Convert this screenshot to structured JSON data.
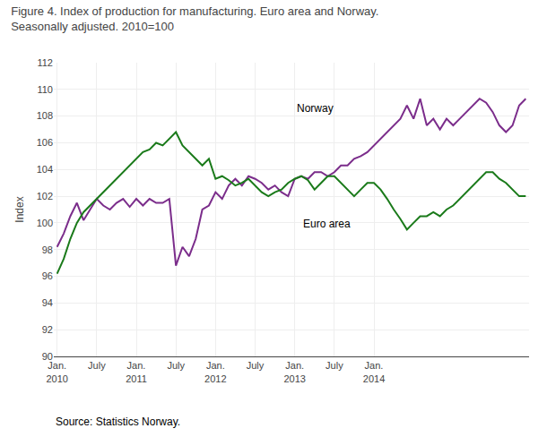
{
  "chart_data": {
    "type": "line",
    "title": "Figure 4. Index of production for manufacturing. Euro area and Norway.",
    "subtitle": "Seasonally adjusted. 2010=100",
    "ylabel": "Index",
    "source": "Source: Statistics Norway.",
    "categories": [
      "Jan.\n2010",
      null,
      null,
      null,
      null,
      null,
      "July",
      null,
      null,
      null,
      null,
      null,
      "Jan.\n2011",
      null,
      null,
      null,
      null,
      null,
      "July",
      null,
      null,
      null,
      null,
      null,
      "Jan.\n2012",
      null,
      null,
      null,
      null,
      null,
      "July",
      null,
      null,
      null,
      null,
      null,
      "Jan.\n2013",
      null,
      null,
      null,
      null,
      null,
      "July",
      null,
      null,
      null,
      null,
      null,
      "Jan.\n2014",
      null,
      null,
      null,
      null,
      null,
      null,
      null,
      null,
      null,
      null,
      null,
      null,
      null,
      null,
      null,
      null,
      null,
      null,
      null,
      null,
      null,
      null,
      null
    ],
    "series": [
      {
        "color": "#7B2D8B",
        "values": [
          98.2,
          99.2,
          100.5,
          101.5,
          100.2,
          101.0,
          101.8,
          101.3,
          101.0,
          101.5,
          101.8,
          101.2,
          101.8,
          101.3,
          101.8,
          101.5,
          101.5,
          101.8,
          96.8,
          98.2,
          97.5,
          98.8,
          101.0,
          101.3,
          102.3,
          101.8,
          102.8,
          103.3,
          102.8,
          103.5,
          103.3,
          103.0,
          102.5,
          102.8,
          102.3,
          102.0,
          103.3,
          103.5,
          103.3,
          103.8,
          103.8,
          103.5,
          103.8,
          104.3,
          104.3,
          104.8,
          105.0,
          105.3,
          105.8,
          106.3,
          106.8,
          107.3,
          107.8,
          108.8,
          107.8,
          109.3,
          107.3,
          107.8,
          107.0,
          107.8,
          107.3,
          107.8,
          108.3,
          108.8,
          109.3,
          109.0,
          108.3,
          107.3,
          106.8,
          107.3,
          108.8,
          109.3
        ]
      },
      {
        "color": "#1A7A1A",
        "values": [
          96.2,
          97.3,
          98.8,
          100.0,
          100.8,
          101.3,
          101.8,
          102.3,
          102.8,
          103.3,
          103.8,
          104.3,
          104.8,
          105.3,
          105.5,
          106.0,
          105.8,
          106.3,
          106.8,
          105.8,
          105.3,
          104.8,
          104.3,
          104.8,
          103.3,
          103.5,
          103.2,
          102.8,
          103.0,
          103.3,
          102.8,
          102.3,
          102.0,
          102.3,
          102.5,
          103.0,
          103.3,
          103.5,
          103.2,
          102.5,
          103.0,
          103.5,
          103.5,
          103.0,
          102.5,
          102.0,
          102.5,
          103.0,
          103.0,
          102.5,
          101.8,
          101.0,
          100.3,
          99.5,
          100.0,
          100.5,
          100.5,
          100.8,
          100.5,
          101.0,
          101.3,
          101.8,
          102.3,
          102.8,
          103.3,
          103.8,
          103.8,
          103.3,
          103.0,
          102.5,
          102.0,
          102.0
        ]
      }
    ],
    "annotations": [
      {
        "text": "Norway",
        "x": 36,
        "y": 108.0
      },
      {
        "text": "Euro area",
        "x": 37,
        "y": 99.3
      }
    ],
    "ylim": [
      90,
      112
    ],
    "yticks": [
      90,
      92,
      94,
      96,
      98,
      100,
      102,
      104,
      106,
      108,
      110,
      112
    ],
    "grid": true
  }
}
